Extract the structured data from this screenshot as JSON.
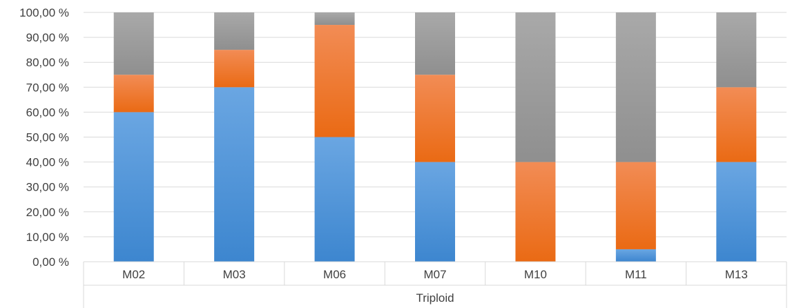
{
  "chart_data": {
    "type": "bar",
    "stacked": true,
    "percent": true,
    "categories": [
      "M02",
      "M03",
      "M06",
      "M07",
      "M10",
      "M11",
      "M13"
    ],
    "group_label": "Triploid",
    "series": [
      {
        "values": [
          60,
          70,
          50,
          40,
          0,
          5,
          40
        ],
        "color": "#4a90d9"
      },
      {
        "values": [
          15,
          15,
          45,
          35,
          40,
          35,
          30
        ],
        "color": "#f07a2a"
      },
      {
        "values": [
          25,
          15,
          5,
          25,
          60,
          60,
          30
        ],
        "color": "#a5a5a5"
      }
    ],
    "ylim": [
      0,
      100
    ],
    "yticks": [
      0,
      10,
      20,
      30,
      40,
      50,
      60,
      70,
      80,
      90,
      100
    ],
    "ytick_labels": [
      "0,00 %",
      "10,00 %",
      "20,00 %",
      "30,00 %",
      "40,00 %",
      "50,00 %",
      "60,00 %",
      "70,00 %",
      "80,00 %",
      "90,00 %",
      "100,00 %"
    ],
    "grid": true,
    "legend": "none"
  }
}
